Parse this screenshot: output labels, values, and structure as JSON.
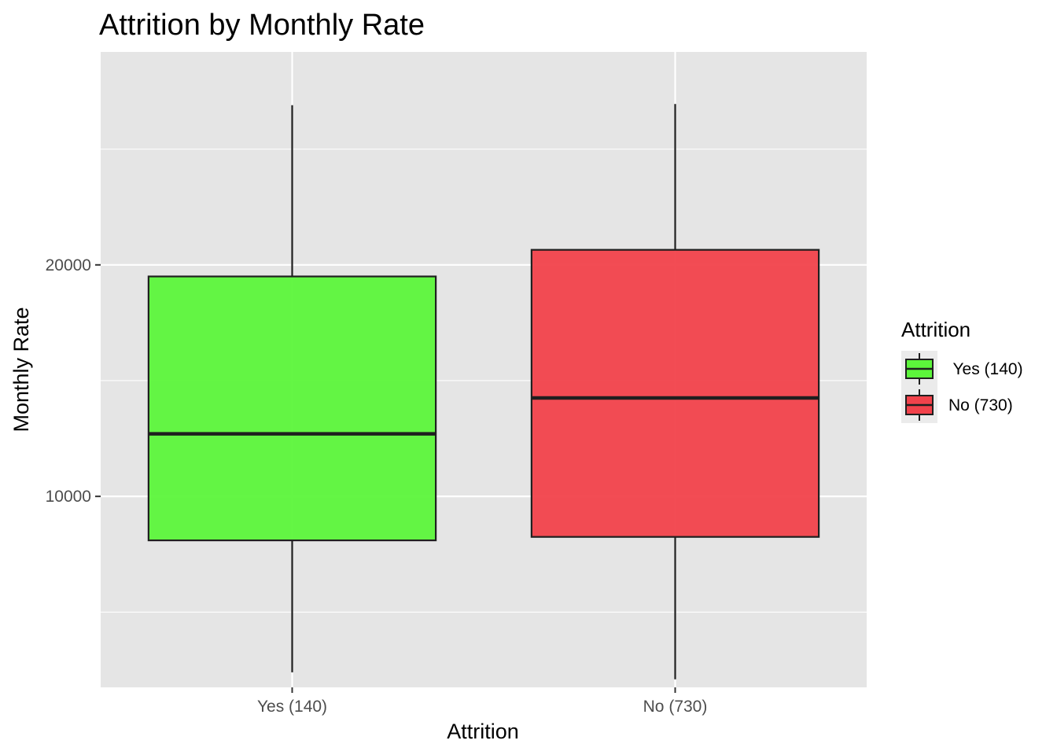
{
  "chart_data": {
    "type": "box",
    "title": "Attrition by Monthly Rate",
    "xlabel": "Attrition",
    "ylabel": "Monthly Rate",
    "ylim": [
      1750,
      29200
    ],
    "yticks": [
      10000,
      20000
    ],
    "ytick_labels": [
      "10000",
      "20000"
    ],
    "grid": true,
    "legend": {
      "title": "Attrition",
      "placement": "right",
      "entries": [
        " Yes (140)",
        "No (730)"
      ]
    },
    "categories": [
      "Yes (140)",
      "No (730)"
    ],
    "series": [
      {
        "category": "Yes (140)",
        "min": 2400,
        "q1": 8100,
        "median": 12700,
        "q3": 19500,
        "max": 26900,
        "color": "#5cf53b"
      },
      {
        "category": "No (730)",
        "min": 2100,
        "q1": 8250,
        "median": 14250,
        "q3": 20650,
        "max": 26950,
        "color": "#f2424b"
      }
    ]
  }
}
